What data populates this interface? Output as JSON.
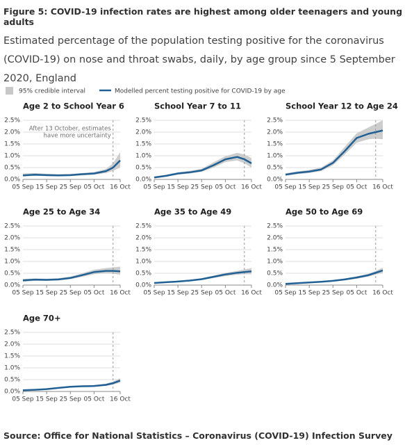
{
  "title": "Figure 5: COVID-19 infection rates are highest among older teenagers and young adults",
  "subtitle": "Estimated percentage of the population testing positive for the coronavirus (COVID-19) on nose and throat swabs, daily, by age group since 5 September 2020, England",
  "legend": {
    "band": "95% credible interval",
    "line": "Modelled percent testing positive for COVID-19 by age",
    "band_color": "#c8c8c8",
    "line_color": "#206095"
  },
  "source": "Source: Office for National Statistics – Coronavirus (COVID-19) Infection Survey",
  "chart_data": [
    {
      "type": "line",
      "title": "Age 2 to School Year 6",
      "annotation": [
        "After 13 October, estimates",
        "have more uncertainty"
      ],
      "uncertainty_from": 38,
      "x": [
        0,
        5,
        10,
        15,
        20,
        25,
        30,
        35,
        38,
        41
      ],
      "xlim": [
        0,
        41
      ],
      "xticks": [
        {
          "value": 0,
          "label": "05 Sep"
        },
        {
          "value": 10,
          "label": "15 Sep"
        },
        {
          "value": 20,
          "label": "25 Sep"
        },
        {
          "value": 30,
          "label": "05 Oct"
        },
        {
          "value": 41,
          "label": "16 Oct"
        }
      ],
      "ylim": [
        0,
        2.5
      ],
      "yticks": [
        {
          "value": 0,
          "label": "0.0%"
        },
        {
          "value": 0.5,
          "label": "0.5%"
        },
        {
          "value": 1,
          "label": "1.0%"
        },
        {
          "value": 1.5,
          "label": "1.5%"
        },
        {
          "value": 2,
          "label": "2.0%"
        },
        {
          "value": 2.5,
          "label": "2.5%"
        }
      ],
      "grid": true,
      "values": [
        0.17,
        0.2,
        0.18,
        0.17,
        0.18,
        0.22,
        0.25,
        0.35,
        0.5,
        0.8
      ],
      "lower": [
        0.12,
        0.15,
        0.14,
        0.13,
        0.14,
        0.17,
        0.2,
        0.27,
        0.36,
        0.5
      ],
      "upper": [
        0.25,
        0.27,
        0.24,
        0.22,
        0.23,
        0.27,
        0.31,
        0.44,
        0.68,
        1.15
      ]
    },
    {
      "type": "line",
      "title": "School Year 7 to 11",
      "uncertainty_from": 38,
      "x": [
        0,
        5,
        10,
        15,
        20,
        25,
        30,
        35,
        38,
        41
      ],
      "xlim": [
        0,
        41
      ],
      "xticks": [
        {
          "value": 0,
          "label": "05 Sep"
        },
        {
          "value": 10,
          "label": "15 Sep"
        },
        {
          "value": 20,
          "label": "25 Sep"
        },
        {
          "value": 30,
          "label": "05 Oct"
        },
        {
          "value": 41,
          "label": "16 Oct"
        }
      ],
      "ylim": [
        0,
        2.5
      ],
      "yticks": [
        {
          "value": 0,
          "label": "0.0%"
        },
        {
          "value": 0.5,
          "label": "0.5%"
        },
        {
          "value": 1,
          "label": "1.0%"
        },
        {
          "value": 1.5,
          "label": "1.5%"
        },
        {
          "value": 2,
          "label": "2.0%"
        },
        {
          "value": 2.5,
          "label": "2.5%"
        }
      ],
      "grid": true,
      "values": [
        0.08,
        0.15,
        0.25,
        0.3,
        0.38,
        0.6,
        0.85,
        0.95,
        0.85,
        0.68
      ],
      "lower": [
        0.05,
        0.11,
        0.2,
        0.25,
        0.32,
        0.5,
        0.73,
        0.8,
        0.68,
        0.5
      ],
      "upper": [
        0.12,
        0.2,
        0.3,
        0.36,
        0.45,
        0.72,
        0.98,
        1.12,
        1.05,
        0.9
      ]
    },
    {
      "type": "line",
      "title": "School Year 12 to Age 24",
      "uncertainty_from": 38,
      "x": [
        0,
        5,
        10,
        15,
        20,
        25,
        30,
        35,
        38,
        41
      ],
      "xlim": [
        0,
        41
      ],
      "xticks": [
        {
          "value": 0,
          "label": "05 Sep"
        },
        {
          "value": 10,
          "label": "15 Sep"
        },
        {
          "value": 20,
          "label": "25 Sep"
        },
        {
          "value": 30,
          "label": "05 Oct"
        },
        {
          "value": 41,
          "label": "16 Oct"
        }
      ],
      "ylim": [
        0,
        2.5
      ],
      "yticks": [
        {
          "value": 0,
          "label": "0.0%"
        },
        {
          "value": 0.5,
          "label": "0.5%"
        },
        {
          "value": 1,
          "label": "1.0%"
        },
        {
          "value": 1.5,
          "label": "1.5%"
        },
        {
          "value": 2,
          "label": "2.0%"
        },
        {
          "value": 2.5,
          "label": "2.5%"
        }
      ],
      "grid": true,
      "values": [
        0.2,
        0.28,
        0.33,
        0.42,
        0.7,
        1.2,
        1.75,
        1.93,
        2.0,
        2.07
      ],
      "lower": [
        0.15,
        0.22,
        0.27,
        0.35,
        0.6,
        1.05,
        1.55,
        1.7,
        1.72,
        1.7
      ],
      "upper": [
        0.26,
        0.34,
        0.4,
        0.5,
        0.8,
        1.38,
        1.95,
        2.2,
        2.35,
        2.5
      ]
    },
    {
      "type": "line",
      "title": "Age 25 to Age 34",
      "uncertainty_from": 38,
      "x": [
        0,
        5,
        10,
        15,
        20,
        25,
        30,
        35,
        38,
        41
      ],
      "xlim": [
        0,
        41
      ],
      "xticks": [
        {
          "value": 0,
          "label": "05 Sep"
        },
        {
          "value": 10,
          "label": "15 Sep"
        },
        {
          "value": 20,
          "label": "25 Sep"
        },
        {
          "value": 30,
          "label": "05 Oct"
        },
        {
          "value": 41,
          "label": "16 Oct"
        }
      ],
      "ylim": [
        0,
        2.5
      ],
      "yticks": [
        {
          "value": 0,
          "label": "0.0%"
        },
        {
          "value": 0.5,
          "label": "0.5%"
        },
        {
          "value": 1,
          "label": "1.0%"
        },
        {
          "value": 1.5,
          "label": "1.5%"
        },
        {
          "value": 2,
          "label": "2.0%"
        },
        {
          "value": 2.5,
          "label": "2.5%"
        }
      ],
      "grid": true,
      "values": [
        0.2,
        0.23,
        0.22,
        0.24,
        0.3,
        0.42,
        0.55,
        0.6,
        0.6,
        0.58
      ],
      "lower": [
        0.14,
        0.18,
        0.18,
        0.2,
        0.25,
        0.35,
        0.46,
        0.5,
        0.48,
        0.44
      ],
      "upper": [
        0.26,
        0.28,
        0.27,
        0.29,
        0.36,
        0.5,
        0.65,
        0.72,
        0.75,
        0.78
      ]
    },
    {
      "type": "line",
      "title": "Age 35 to Age 49",
      "uncertainty_from": 38,
      "x": [
        0,
        5,
        10,
        15,
        20,
        25,
        30,
        35,
        38,
        41
      ],
      "xlim": [
        0,
        41
      ],
      "xticks": [
        {
          "value": 0,
          "label": "05 Sep"
        },
        {
          "value": 10,
          "label": "15 Sep"
        },
        {
          "value": 20,
          "label": "25 Sep"
        },
        {
          "value": 30,
          "label": "05 Oct"
        },
        {
          "value": 41,
          "label": "16 Oct"
        }
      ],
      "ylim": [
        0,
        2.5
      ],
      "yticks": [
        {
          "value": 0,
          "label": "0.0%"
        },
        {
          "value": 0.5,
          "label": "0.5%"
        },
        {
          "value": 1,
          "label": "1.0%"
        },
        {
          "value": 1.5,
          "label": "1.5%"
        },
        {
          "value": 2,
          "label": "2.0%"
        },
        {
          "value": 2.5,
          "label": "2.5%"
        }
      ],
      "grid": true,
      "values": [
        0.09,
        0.12,
        0.15,
        0.19,
        0.25,
        0.35,
        0.45,
        0.52,
        0.55,
        0.58
      ],
      "lower": [
        0.07,
        0.1,
        0.12,
        0.16,
        0.21,
        0.3,
        0.38,
        0.44,
        0.46,
        0.46
      ],
      "upper": [
        0.11,
        0.14,
        0.18,
        0.22,
        0.29,
        0.4,
        0.52,
        0.6,
        0.66,
        0.72
      ]
    },
    {
      "type": "line",
      "title": "Age 50 to Age 69",
      "uncertainty_from": 38,
      "x": [
        0,
        5,
        10,
        15,
        20,
        25,
        30,
        35,
        38,
        41
      ],
      "xlim": [
        0,
        41
      ],
      "xticks": [
        {
          "value": 0,
          "label": "05 Sep"
        },
        {
          "value": 10,
          "label": "15 Sep"
        },
        {
          "value": 20,
          "label": "25 Sep"
        },
        {
          "value": 30,
          "label": "05 Oct"
        },
        {
          "value": 41,
          "label": "16 Oct"
        }
      ],
      "ylim": [
        0,
        2.5
      ],
      "yticks": [
        {
          "value": 0,
          "label": "0.0%"
        },
        {
          "value": 0.5,
          "label": "0.5%"
        },
        {
          "value": 1,
          "label": "1.0%"
        },
        {
          "value": 1.5,
          "label": "1.5%"
        },
        {
          "value": 2,
          "label": "2.0%"
        },
        {
          "value": 2.5,
          "label": "2.5%"
        }
      ],
      "grid": true,
      "values": [
        0.05,
        0.08,
        0.11,
        0.14,
        0.18,
        0.24,
        0.32,
        0.42,
        0.52,
        0.62
      ],
      "lower": [
        0.04,
        0.07,
        0.09,
        0.12,
        0.15,
        0.2,
        0.27,
        0.36,
        0.44,
        0.52
      ],
      "upper": [
        0.06,
        0.1,
        0.13,
        0.16,
        0.21,
        0.28,
        0.37,
        0.48,
        0.6,
        0.74
      ]
    },
    {
      "type": "line",
      "title": "Age 70+",
      "uncertainty_from": 38,
      "x": [
        0,
        5,
        10,
        15,
        20,
        25,
        30,
        35,
        38,
        41
      ],
      "xlim": [
        0,
        41
      ],
      "xticks": [
        {
          "value": 0,
          "label": "05 Sep"
        },
        {
          "value": 10,
          "label": "15 Sep"
        },
        {
          "value": 20,
          "label": "25 Sep"
        },
        {
          "value": 30,
          "label": "05 Oct"
        },
        {
          "value": 41,
          "label": "16 Oct"
        }
      ],
      "ylim": [
        0,
        2.5
      ],
      "yticks": [
        {
          "value": 0,
          "label": "0.0%"
        },
        {
          "value": 0.5,
          "label": "0.5%"
        },
        {
          "value": 1,
          "label": "1.0%"
        },
        {
          "value": 1.5,
          "label": "1.5%"
        },
        {
          "value": 2,
          "label": "2.0%"
        },
        {
          "value": 2.5,
          "label": "2.5%"
        }
      ],
      "grid": true,
      "values": [
        0.05,
        0.07,
        0.1,
        0.15,
        0.2,
        0.22,
        0.23,
        0.28,
        0.35,
        0.46
      ],
      "lower": [
        0.03,
        0.05,
        0.08,
        0.12,
        0.17,
        0.19,
        0.2,
        0.24,
        0.29,
        0.37
      ],
      "upper": [
        0.07,
        0.09,
        0.12,
        0.18,
        0.23,
        0.25,
        0.27,
        0.33,
        0.42,
        0.56
      ]
    }
  ]
}
